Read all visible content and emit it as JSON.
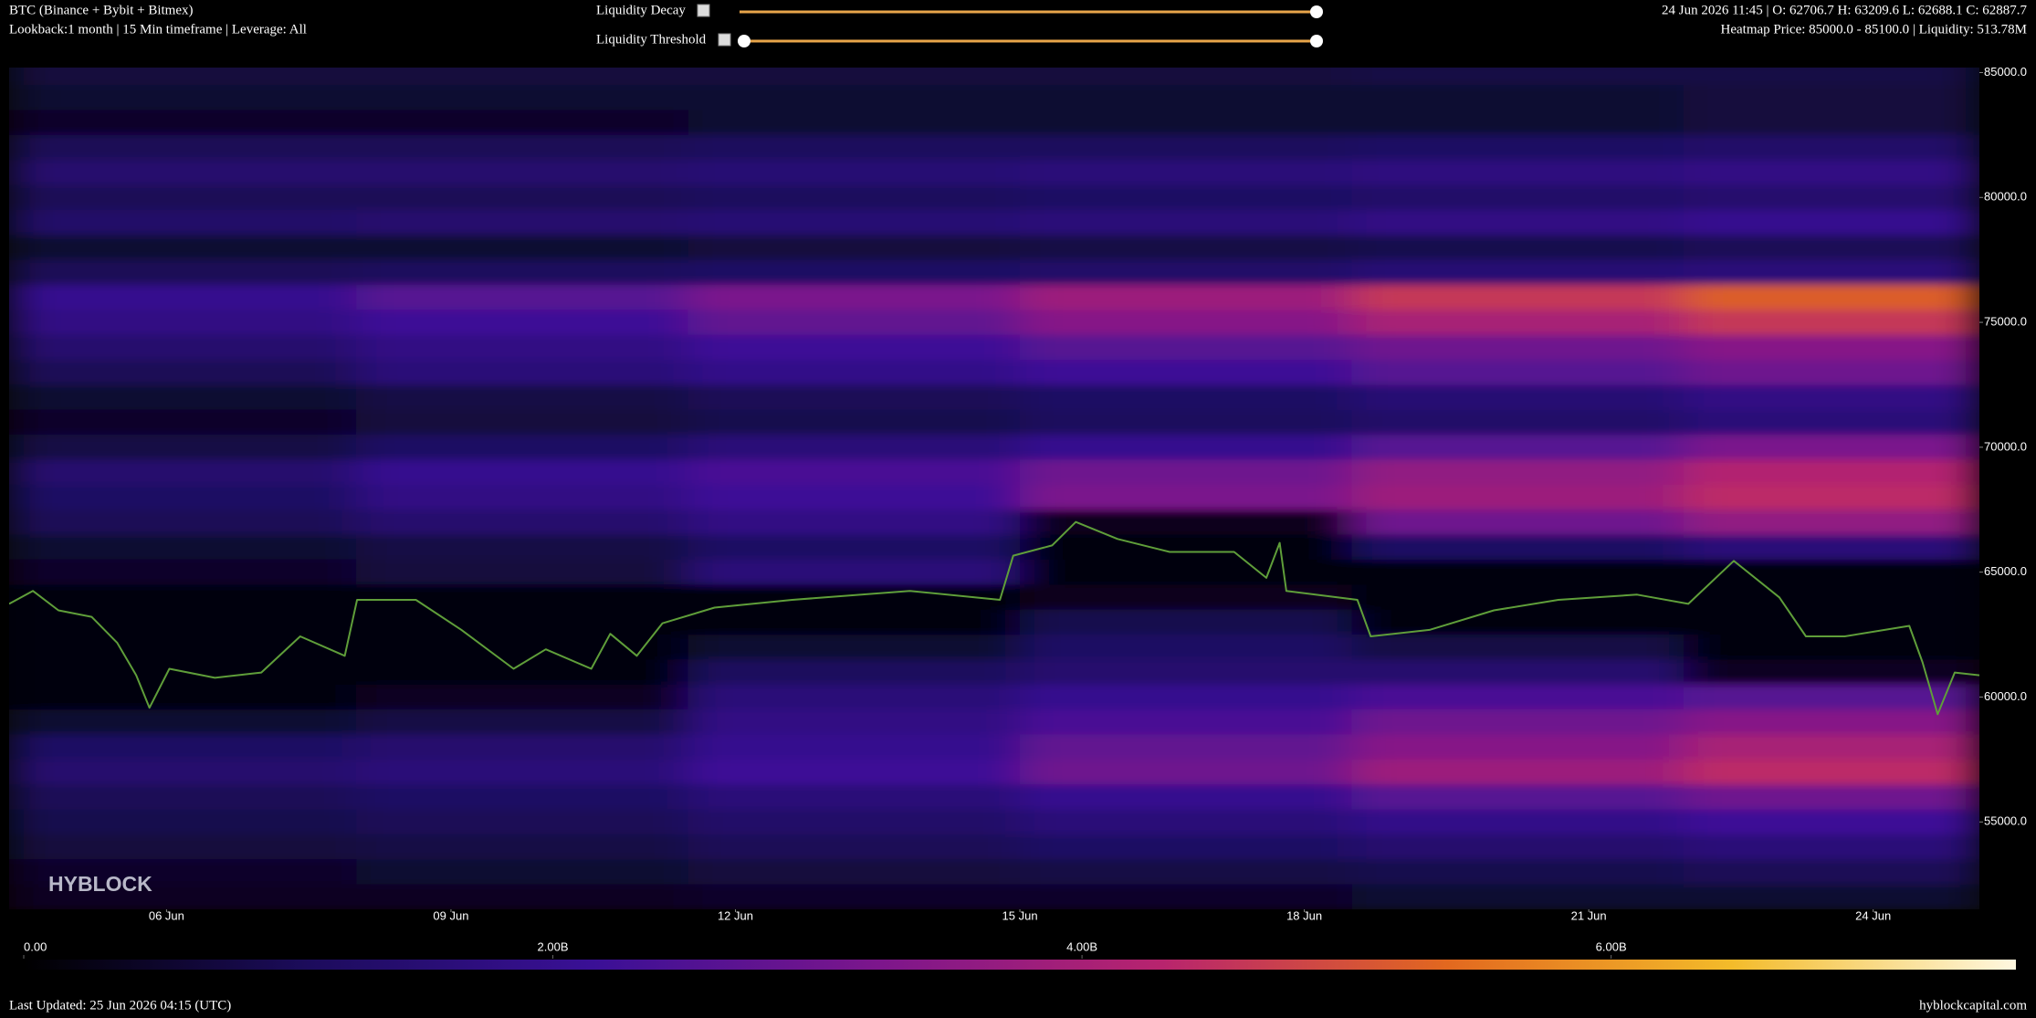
{
  "chart_data": {
    "type": "heatmap",
    "title": "BTC (Binance + Bybit + Bitmex)",
    "subtitle": "Lookback:1 month | 15 Min timeframe | Leverage: All",
    "ohlc": "24 Jun 2026 11:45 | O: 62706.7 H: 63209.6 L: 62688.1 C: 62887.7",
    "heatmap_info": "Heatmap Price: 85000.0 - 85100.0 | Liquidity: 513.78M",
    "watermark": "HYBLOCK",
    "xlim": [
      4.34,
      25.12
    ],
    "xticks": [
      {
        "value": 6,
        "label": "06 Jun"
      },
      {
        "value": 9,
        "label": "09 Jun"
      },
      {
        "value": 12,
        "label": "12 Jun"
      },
      {
        "value": 15,
        "label": "15 Jun"
      },
      {
        "value": 18,
        "label": "18 Jun"
      },
      {
        "value": 21,
        "label": "21 Jun"
      },
      {
        "value": 24,
        "label": "24 Jun"
      }
    ],
    "ylim": [
      51500,
      85200
    ],
    "yticks": [
      {
        "value": 55000,
        "label": "55000.0"
      },
      {
        "value": 60000,
        "label": "60000.0"
      },
      {
        "value": 65000,
        "label": "65000.0"
      },
      {
        "value": 70000,
        "label": "70000.0"
      },
      {
        "value": 75000,
        "label": "75000.0"
      },
      {
        "value": 80000,
        "label": "80000.0"
      },
      {
        "value": 85000,
        "label": "85000.0"
      }
    ],
    "colorbar": {
      "lim": [
        0,
        7.53
      ],
      "ticks": [
        {
          "value": 0,
          "label": "0.00"
        },
        {
          "value": 2,
          "label": "2.00B"
        },
        {
          "value": 4,
          "label": "4.00B"
        },
        {
          "value": 6,
          "label": "6.00B"
        }
      ],
      "colors": [
        "#000000",
        "#1c0c5c",
        "#3a1096",
        "#7c168c",
        "#b8246e",
        "#e2681f",
        "#f3bb2a",
        "#fff8e0"
      ]
    },
    "heatmap": {
      "x_edges": [
        4.34,
        8,
        11.5,
        15,
        18.5,
        22,
        25.12
      ],
      "rows": [
        {
          "price": 85000,
          "values": [
            0.7,
            0.7,
            0.7,
            0.7,
            0.8,
            0.8
          ]
        },
        {
          "price": 84000,
          "values": [
            0.6,
            0.6,
            0.6,
            0.6,
            0.6,
            0.7
          ]
        },
        {
          "price": 83000,
          "values": [
            0.5,
            0.5,
            0.6,
            0.6,
            0.6,
            0.7
          ]
        },
        {
          "price": 82000,
          "values": [
            1.0,
            1.0,
            1.1,
            1.1,
            1.2,
            1.3
          ]
        },
        {
          "price": 81000,
          "values": [
            1.4,
            1.4,
            1.5,
            1.6,
            1.7,
            1.8
          ]
        },
        {
          "price": 80000,
          "values": [
            1.0,
            1.0,
            1.1,
            1.2,
            1.3,
            1.4
          ]
        },
        {
          "price": 79000,
          "values": [
            1.3,
            1.4,
            1.5,
            1.6,
            1.8,
            2.0
          ]
        },
        {
          "price": 78000,
          "values": [
            0.6,
            0.6,
            0.7,
            0.8,
            0.9,
            1.0
          ]
        },
        {
          "price": 77000,
          "values": [
            1.0,
            1.1,
            1.2,
            1.3,
            1.5,
            1.6
          ]
        },
        {
          "price": 76000,
          "values": [
            2.0,
            2.6,
            3.2,
            3.8,
            4.6,
            5.2
          ]
        },
        {
          "price": 75000,
          "values": [
            1.8,
            2.2,
            2.8,
            3.4,
            4.0,
            4.6
          ]
        },
        {
          "price": 74000,
          "values": [
            1.4,
            1.8,
            2.2,
            2.6,
            3.0,
            3.4
          ]
        },
        {
          "price": 73000,
          "values": [
            1.0,
            1.6,
            1.9,
            2.2,
            2.6,
            3.0
          ]
        },
        {
          "price": 72000,
          "values": [
            0.6,
            0.8,
            1.0,
            1.2,
            1.5,
            1.8
          ]
        },
        {
          "price": 71000,
          "values": [
            0.5,
            0.7,
            0.9,
            1.1,
            1.3,
            1.6
          ]
        },
        {
          "price": 70000,
          "values": [
            0.8,
            1.2,
            1.6,
            2.0,
            2.6,
            3.2
          ]
        },
        {
          "price": 69000,
          "values": [
            1.4,
            2.0,
            2.4,
            3.0,
            3.6,
            4.2
          ]
        },
        {
          "price": 68000,
          "values": [
            1.2,
            1.8,
            2.2,
            3.2,
            3.8,
            4.4
          ]
        },
        {
          "price": 67000,
          "values": [
            1.0,
            1.4,
            1.8,
            0.3,
            3.0,
            3.6
          ]
        },
        {
          "price": 66000,
          "values": [
            0.6,
            0.8,
            1.2,
            0.1,
            1.2,
            1.6
          ]
        },
        {
          "price": 65000,
          "values": [
            0.5,
            0.7,
            1.6,
            0.1,
            0.2,
            0.2
          ]
        },
        {
          "price": 64000,
          "values": [
            0.2,
            0.1,
            0.1,
            0.3,
            0.1,
            0.1
          ]
        },
        {
          "price": 63000,
          "values": [
            0.1,
            0.1,
            0.1,
            0.9,
            0.1,
            0.2
          ]
        },
        {
          "price": 62000,
          "values": [
            0.2,
            0.2,
            0.6,
            1.2,
            0.8,
            0.1
          ]
        },
        {
          "price": 61000,
          "values": [
            0.1,
            0.1,
            1.1,
            1.4,
            1.4,
            0.4
          ]
        },
        {
          "price": 60000,
          "values": [
            0.2,
            0.4,
            1.6,
            2.0,
            2.4,
            2.6
          ]
        },
        {
          "price": 59000,
          "values": [
            0.6,
            0.8,
            1.8,
            2.4,
            3.0,
            3.4
          ]
        },
        {
          "price": 58000,
          "values": [
            1.2,
            1.4,
            2.0,
            2.8,
            3.4,
            4.0
          ]
        },
        {
          "price": 57000,
          "values": [
            1.4,
            1.6,
            2.2,
            3.0,
            3.8,
            4.4
          ]
        },
        {
          "price": 56000,
          "values": [
            1.0,
            1.2,
            1.6,
            2.0,
            2.6,
            3.0
          ]
        },
        {
          "price": 55000,
          "values": [
            0.9,
            1.0,
            1.3,
            1.6,
            1.9,
            2.2
          ]
        },
        {
          "price": 54000,
          "values": [
            0.7,
            0.8,
            1.0,
            1.2,
            1.4,
            1.6
          ]
        },
        {
          "price": 53000,
          "values": [
            0.5,
            0.6,
            0.7,
            0.8,
            0.9,
            1.0
          ]
        },
        {
          "price": 52000,
          "values": [
            0.4,
            0.4,
            0.5,
            0.5,
            0.6,
            0.6
          ]
        }
      ]
    },
    "price": {
      "color": "#5f9e3a",
      "x": [
        4.34,
        4.59,
        4.86,
        5.21,
        5.48,
        5.68,
        5.82,
        6.03,
        6.51,
        7.0,
        7.41,
        7.88,
        8.01,
        8.63,
        9.11,
        9.66,
        10.0,
        10.48,
        10.68,
        10.96,
        11.23,
        11.78,
        12.6,
        13.84,
        14.79,
        14.93,
        15.34,
        15.59,
        16.03,
        16.58,
        17.26,
        17.6,
        17.74,
        17.81,
        18.56,
        18.7,
        19.32,
        20.0,
        20.68,
        21.51,
        22.05,
        22.53,
        23.01,
        23.29,
        23.7,
        24.38,
        24.52,
        24.68,
        24.86,
        25.12
      ],
      "values": [
        63730,
        64250,
        63470,
        63210,
        62170,
        60870,
        59570,
        61130,
        60770,
        60980,
        62430,
        61650,
        63890,
        63890,
        62690,
        61130,
        61910,
        61130,
        62530,
        61650,
        62950,
        63580,
        63890,
        64250,
        63890,
        65660,
        66070,
        67010,
        66330,
        65810,
        65810,
        64770,
        66170,
        64250,
        63890,
        62430,
        62690,
        63470,
        63890,
        64100,
        63730,
        65450,
        63990,
        62430,
        62430,
        62850,
        61390,
        59310,
        60980,
        60870
      ]
    }
  },
  "controls": {
    "decay": "Liquidity Decay",
    "threshold": "Liquidity Threshold"
  },
  "footer": {
    "updated": "Last Updated: 25 Jun 2026 04:15 (UTC)",
    "site": "hyblockcapital.com"
  }
}
